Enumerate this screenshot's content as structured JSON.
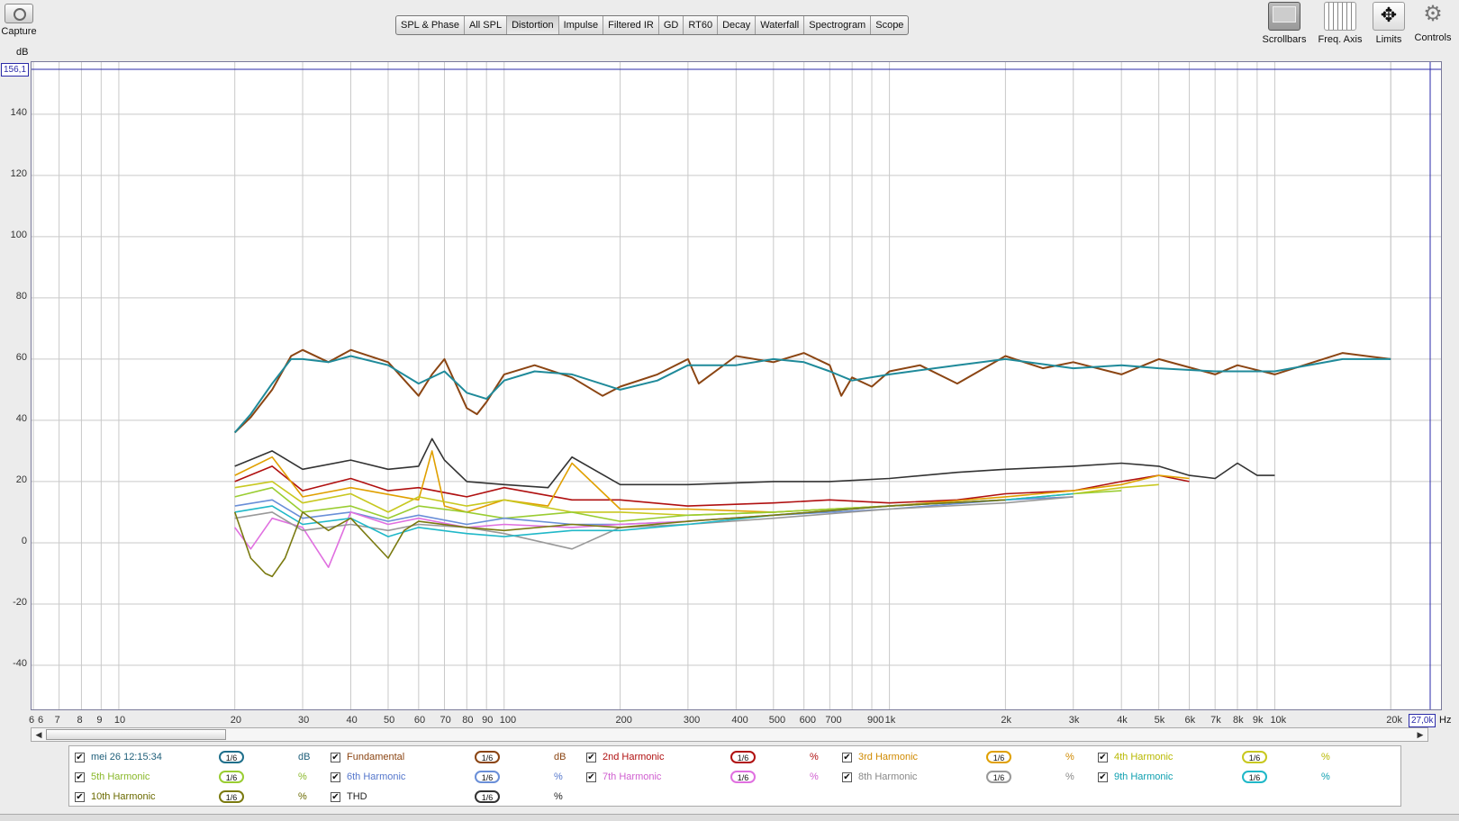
{
  "capture": {
    "label": "Capture",
    "icon": "camera-icon"
  },
  "tabs": [
    {
      "label": "SPL & Phase",
      "active": false
    },
    {
      "label": "All SPL",
      "active": false
    },
    {
      "label": "Distortion",
      "active": true
    },
    {
      "label": "Impulse",
      "active": false
    },
    {
      "label": "Filtered IR",
      "active": false
    },
    {
      "label": "GD",
      "active": false
    },
    {
      "label": "RT60",
      "active": false
    },
    {
      "label": "Decay",
      "active": false
    },
    {
      "label": "Waterfall",
      "active": false
    },
    {
      "label": "Spectrogram",
      "active": false
    },
    {
      "label": "Scope",
      "active": false
    }
  ],
  "tools": [
    {
      "label": "Scrollbars",
      "icon": "scrollbars-icon",
      "selected": true
    },
    {
      "label": "Freq. Axis",
      "icon": "freq-axis-icon",
      "selected": false
    },
    {
      "label": "Limits",
      "icon": "limits-icon",
      "selected": false
    },
    {
      "label": "Controls",
      "icon": "gear-icon",
      "selected": false
    }
  ],
  "graph": {
    "y_unit": "dB",
    "x_unit": "Hz",
    "y_cursor_value": "156,1",
    "x_cursor_value": "27,0k",
    "y_ticks": [
      "140",
      "120",
      "100",
      "80",
      "60",
      "40",
      "20",
      "0",
      "-20",
      "-40"
    ],
    "x_ticks": [
      "6",
      "6",
      "7",
      "8",
      "9",
      "10",
      "20",
      "30",
      "40",
      "50",
      "60",
      "70",
      "80",
      "90",
      "100",
      "200",
      "300",
      "400",
      "500",
      "600",
      "700",
      "900",
      "1k",
      "2k",
      "3k",
      "4k",
      "5k",
      "6k",
      "7k",
      "8k",
      "9k",
      "10k",
      "20k"
    ]
  },
  "legend": [
    {
      "name": "mei 26 12:15:34",
      "smoothing": "1/6",
      "unit": "dB",
      "checked": true,
      "color": "#1f6f8b",
      "text_color": "#1f5f7a"
    },
    {
      "name": "Fundamental",
      "smoothing": "1/6",
      "unit": "dB",
      "checked": true,
      "color": "#8b4513",
      "text_color": "#8b4513"
    },
    {
      "name": "2nd Harmonic",
      "smoothing": "1/6",
      "unit": "%",
      "checked": true,
      "color": "#b01010",
      "text_color": "#b01010"
    },
    {
      "name": "3rd Harmonic",
      "smoothing": "1/6",
      "unit": "%",
      "checked": true,
      "color": "#e0a000",
      "text_color": "#d08a00"
    },
    {
      "name": "4th Harmonic",
      "smoothing": "1/6",
      "unit": "%",
      "checked": true,
      "color": "#c8c820",
      "text_color": "#b8b800"
    },
    {
      "name": "5th Harmonic",
      "smoothing": "1/6",
      "unit": "%",
      "checked": true,
      "color": "#9acd32",
      "text_color": "#8ab82a"
    },
    {
      "name": "6th Harmonic",
      "smoothing": "1/6",
      "unit": "%",
      "checked": true,
      "color": "#6a8fd8",
      "text_color": "#5577cc"
    },
    {
      "name": "7th Harmonic",
      "smoothing": "1/6",
      "unit": "%",
      "checked": true,
      "color": "#e070e0",
      "text_color": "#d060d0"
    },
    {
      "name": "8th Harmonic",
      "smoothing": "1/6",
      "unit": "%",
      "checked": true,
      "color": "#999999",
      "text_color": "#888888"
    },
    {
      "name": "9th Harmonic",
      "smoothing": "1/6",
      "unit": "%",
      "checked": true,
      "color": "#20b8c8",
      "text_color": "#10a0b0"
    },
    {
      "name": "10th Harmonic",
      "smoothing": "1/6",
      "unit": "%",
      "checked": true,
      "color": "#7a7a10",
      "text_color": "#6a6a00"
    },
    {
      "name": "THD",
      "smoothing": "1/6",
      "unit": "%",
      "checked": true,
      "color": "#333333",
      "text_color": "#222222"
    }
  ],
  "chart_data": {
    "type": "line",
    "xscale": "log",
    "xlim": [
      6,
      27000
    ],
    "ylim": [
      -55,
      157
    ],
    "grid": true,
    "series": [
      {
        "name": "mei 26 12:15:34",
        "color": "#1f8a9a",
        "x": [
          20,
          22,
          25,
          28,
          30,
          35,
          40,
          50,
          60,
          70,
          80,
          90,
          100,
          120,
          150,
          200,
          250,
          300,
          400,
          500,
          600,
          700,
          800,
          1000,
          1500,
          2000,
          3000,
          4000,
          5000,
          7000,
          10000,
          15000,
          20000
        ],
        "y": [
          36,
          42,
          52,
          60,
          60,
          59,
          61,
          58,
          52,
          56,
          49,
          47,
          53,
          56,
          55,
          50,
          53,
          58,
          58,
          60,
          59,
          56,
          53,
          55,
          58,
          60,
          57,
          58,
          57,
          56,
          56,
          60,
          60
        ]
      },
      {
        "name": "Fundamental",
        "color": "#8b4513",
        "x": [
          20,
          22,
          25,
          28,
          30,
          35,
          40,
          50,
          60,
          65,
          70,
          80,
          85,
          90,
          100,
          120,
          150,
          180,
          200,
          250,
          300,
          320,
          400,
          500,
          600,
          700,
          750,
          800,
          900,
          1000,
          1200,
          1500,
          2000,
          2500,
          3000,
          4000,
          5000,
          7000,
          8000,
          10000,
          15000,
          20000
        ],
        "y": [
          36,
          41,
          50,
          61,
          63,
          59,
          63,
          59,
          48,
          55,
          60,
          44,
          42,
          46,
          55,
          58,
          54,
          48,
          51,
          55,
          60,
          52,
          61,
          59,
          62,
          58,
          48,
          54,
          51,
          56,
          58,
          52,
          61,
          57,
          59,
          55,
          60,
          55,
          58,
          55,
          62,
          60
        ]
      },
      {
        "name": "2nd Harmonic",
        "color": "#b01010",
        "x": [
          20,
          25,
          30,
          40,
          50,
          60,
          80,
          100,
          150,
          200,
          300,
          500,
          700,
          1000,
          1500,
          2000,
          3000,
          4000,
          5000,
          6000
        ],
        "y": [
          20,
          25,
          17,
          21,
          17,
          18,
          15,
          18,
          14,
          14,
          12,
          13,
          14,
          13,
          14,
          16,
          17,
          20,
          22,
          20
        ]
      },
      {
        "name": "3rd Harmonic",
        "color": "#e0a000",
        "x": [
          20,
          25,
          30,
          40,
          60,
          65,
          70,
          80,
          100,
          130,
          150,
          200,
          300,
          500,
          1000,
          2000,
          3000,
          4000,
          5000,
          6000
        ],
        "y": [
          22,
          28,
          15,
          18,
          14,
          30,
          12,
          10,
          14,
          12,
          26,
          11,
          11,
          10,
          12,
          15,
          17,
          19,
          22,
          21
        ]
      },
      {
        "name": "4th Harmonic",
        "color": "#c8c820",
        "x": [
          20,
          25,
          30,
          40,
          50,
          60,
          80,
          100,
          150,
          200,
          300,
          500,
          1000,
          2000,
          3000,
          4000,
          5000
        ],
        "y": [
          18,
          20,
          13,
          16,
          10,
          15,
          12,
          14,
          10,
          10,
          9,
          10,
          12,
          14,
          16,
          18,
          19
        ]
      },
      {
        "name": "5th Harmonic",
        "color": "#9acd32",
        "x": [
          20,
          25,
          30,
          40,
          50,
          60,
          80,
          100,
          150,
          200,
          300,
          500,
          1000,
          2000,
          3000,
          4000
        ],
        "y": [
          15,
          18,
          10,
          12,
          8,
          12,
          10,
          8,
          10,
          7,
          9,
          10,
          12,
          14,
          16,
          17
        ]
      },
      {
        "name": "6th Harmonic",
        "color": "#6a8fd8",
        "x": [
          20,
          25,
          30,
          40,
          50,
          60,
          80,
          100,
          150,
          200,
          300,
          500,
          1000,
          2000,
          3000
        ],
        "y": [
          12,
          14,
          8,
          10,
          7,
          9,
          6,
          8,
          6,
          6,
          7,
          9,
          11,
          14,
          15
        ]
      },
      {
        "name": "7th Harmonic",
        "color": "#e070e0",
        "x": [
          20,
          22,
          25,
          30,
          35,
          40,
          50,
          60,
          80,
          100,
          150,
          200,
          300,
          500,
          1000,
          2000
        ],
        "y": [
          5,
          -2,
          8,
          5,
          -8,
          10,
          6,
          8,
          5,
          6,
          5,
          6,
          7,
          9,
          12,
          14
        ]
      },
      {
        "name": "8th Harmonic",
        "color": "#999999",
        "x": [
          20,
          25,
          30,
          40,
          50,
          60,
          80,
          100,
          150,
          200,
          300,
          500,
          1000,
          2000,
          3000
        ],
        "y": [
          8,
          10,
          4,
          6,
          4,
          6,
          5,
          3,
          -2,
          5,
          6,
          8,
          11,
          13,
          15
        ]
      },
      {
        "name": "9th Harmonic",
        "color": "#20b8c8",
        "x": [
          20,
          25,
          30,
          40,
          50,
          60,
          80,
          100,
          150,
          200,
          300,
          500,
          1000,
          2000,
          3000
        ],
        "y": [
          10,
          12,
          6,
          8,
          2,
          5,
          3,
          2,
          4,
          4,
          6,
          9,
          12,
          14,
          16
        ]
      },
      {
        "name": "10th Harmonic",
        "color": "#7a7a10",
        "x": [
          20,
          22,
          24,
          25,
          27,
          30,
          35,
          40,
          50,
          55,
          60,
          80,
          100,
          150,
          200,
          300,
          500,
          1000,
          2000
        ],
        "y": [
          10,
          -5,
          -10,
          -11,
          -5,
          10,
          4,
          8,
          -5,
          4,
          7,
          5,
          4,
          6,
          5,
          7,
          9,
          12,
          14
        ]
      },
      {
        "name": "THD",
        "color": "#333333",
        "x": [
          20,
          25,
          30,
          40,
          50,
          60,
          65,
          70,
          80,
          100,
          130,
          150,
          200,
          300,
          500,
          700,
          1000,
          1500,
          2000,
          3000,
          4000,
          5000,
          6000,
          7000,
          8000,
          9000,
          10000
        ],
        "y": [
          25,
          30,
          24,
          27,
          24,
          25,
          34,
          27,
          20,
          19,
          18,
          28,
          19,
          19,
          20,
          20,
          21,
          23,
          24,
          25,
          26,
          25,
          22,
          21,
          26,
          22,
          22
        ]
      }
    ]
  }
}
